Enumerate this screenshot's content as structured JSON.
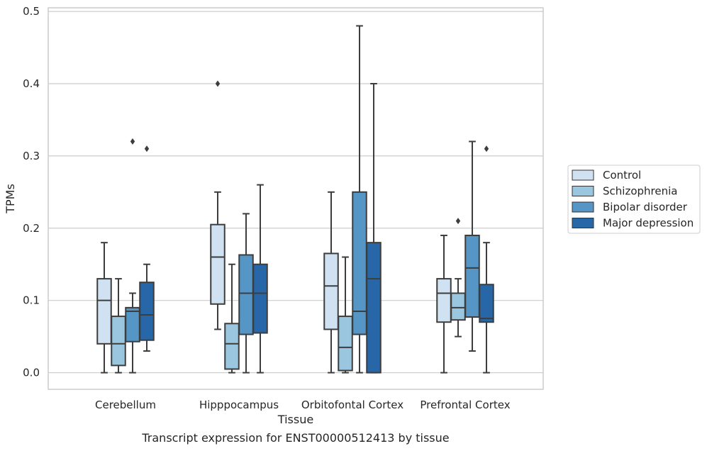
{
  "chart_data": {
    "type": "box",
    "title": "",
    "caption": "Transcript expression for ENST00000512413 by tissue",
    "xlabel": "Tissue",
    "ylabel": "TPMs",
    "ylim": [
      -0.023,
      0.505
    ],
    "yticks": [
      0.0,
      0.1,
      0.2,
      0.3,
      0.4,
      0.5
    ],
    "ytick_labels": [
      "0.0",
      "0.1",
      "0.2",
      "0.3",
      "0.4",
      "0.5"
    ],
    "grid": true,
    "legend_position": "outside right",
    "categories": [
      "Cerebellum",
      "Hipppocampus",
      "Orbitofontal Cortex",
      "Prefrontal Cortex"
    ],
    "series": [
      {
        "name": "Control",
        "color": "#d0e1f2",
        "boxes": [
          {
            "whislo": 0.0,
            "q1": 0.04,
            "med": 0.1,
            "q3": 0.13,
            "whishi": 0.18,
            "fliers": []
          },
          {
            "whislo": 0.06,
            "q1": 0.095,
            "med": 0.16,
            "q3": 0.205,
            "whishi": 0.25,
            "fliers": [
              0.4
            ]
          },
          {
            "whislo": 0.0,
            "q1": 0.06,
            "med": 0.12,
            "q3": 0.165,
            "whishi": 0.25,
            "fliers": []
          },
          {
            "whislo": 0.0,
            "q1": 0.07,
            "med": 0.11,
            "q3": 0.13,
            "whishi": 0.19,
            "fliers": []
          }
        ]
      },
      {
        "name": "Schizophrenia",
        "color": "#9ac6e0",
        "boxes": [
          {
            "whislo": 0.0,
            "q1": 0.01,
            "med": 0.04,
            "q3": 0.078,
            "whishi": 0.13,
            "fliers": []
          },
          {
            "whislo": 0.0,
            "q1": 0.005,
            "med": 0.04,
            "q3": 0.068,
            "whishi": 0.15,
            "fliers": []
          },
          {
            "whislo": 0.0,
            "q1": 0.003,
            "med": 0.035,
            "q3": 0.078,
            "whishi": 0.16,
            "fliers": []
          },
          {
            "whislo": 0.05,
            "q1": 0.073,
            "med": 0.09,
            "q3": 0.11,
            "whishi": 0.13,
            "fliers": [
              0.21
            ]
          }
        ]
      },
      {
        "name": "Bipolar disorder",
        "color": "#5596c6",
        "boxes": [
          {
            "whislo": 0.0,
            "q1": 0.043,
            "med": 0.085,
            "q3": 0.09,
            "whishi": 0.11,
            "fliers": [
              0.32
            ]
          },
          {
            "whislo": 0.0,
            "q1": 0.053,
            "med": 0.11,
            "q3": 0.163,
            "whishi": 0.22,
            "fliers": []
          },
          {
            "whislo": 0.0,
            "q1": 0.053,
            "med": 0.085,
            "q3": 0.25,
            "whishi": 0.48,
            "fliers": []
          },
          {
            "whislo": 0.03,
            "q1": 0.077,
            "med": 0.145,
            "q3": 0.19,
            "whishi": 0.32,
            "fliers": []
          }
        ]
      },
      {
        "name": "Major depression",
        "color": "#2867a7",
        "boxes": [
          {
            "whislo": 0.03,
            "q1": 0.045,
            "med": 0.08,
            "q3": 0.125,
            "whishi": 0.15,
            "fliers": [
              0.31
            ]
          },
          {
            "whislo": 0.0,
            "q1": 0.055,
            "med": 0.11,
            "q3": 0.15,
            "whishi": 0.26,
            "fliers": []
          },
          {
            "whislo": 0.0,
            "q1": 0.0,
            "med": 0.13,
            "q3": 0.18,
            "whishi": 0.4,
            "fliers": []
          },
          {
            "whislo": 0.0,
            "q1": 0.07,
            "med": 0.075,
            "q3": 0.122,
            "whishi": 0.18,
            "fliers": [
              0.31
            ]
          }
        ]
      }
    ]
  }
}
